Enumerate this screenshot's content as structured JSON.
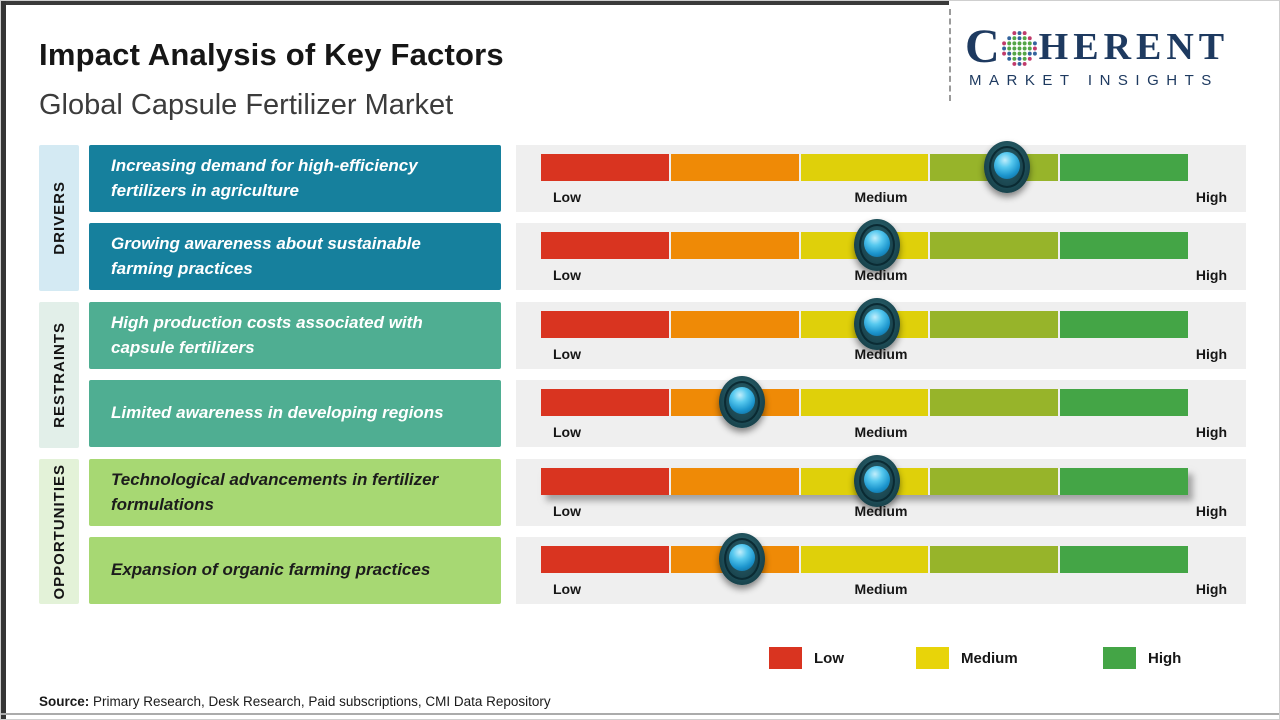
{
  "header": {
    "title": "Impact Analysis of Key Factors",
    "subtitle": "Global Capsule Fertilizer Market",
    "logo": {
      "brand_start": "C",
      "brand_end": "HERENT",
      "tagline": "MARKET INSIGHTS",
      "brand_color": "#1e3a60"
    }
  },
  "groups": [
    {
      "label": "DRIVERS",
      "factors": [
        {
          "text": "Increasing demand for high-efficiency fertilizers in agriculture",
          "impact_pct": 72
        },
        {
          "text": "Growing awareness about sustainable farming practices",
          "impact_pct": 52
        }
      ]
    },
    {
      "label": "RESTRAINTS",
      "factors": [
        {
          "text": "High production costs associated with capsule fertilizers",
          "impact_pct": 52
        },
        {
          "text": "Limited awareness in developing regions",
          "impact_pct": 31
        }
      ]
    },
    {
      "label": "OPPORTUNITIES",
      "factors": [
        {
          "text": "Technological advancements in fertilizer formulations",
          "impact_pct": 52
        },
        {
          "text": "Expansion of organic farming practices",
          "impact_pct": 31
        }
      ]
    }
  ],
  "scale": {
    "low": "Low",
    "medium": "Medium",
    "high": "High"
  },
  "bar_scale_colors": [
    "#d93420",
    "#ef8a06",
    "#dfd00a",
    "#97b42a",
    "#44a546"
  ],
  "legend": [
    {
      "label": "Low",
      "color": "#d93420"
    },
    {
      "label": "Medium",
      "color": "#e8d409"
    },
    {
      "label": "High",
      "color": "#44a546"
    }
  ],
  "source": {
    "label": "Source:",
    "text": " Primary Research, Desk Research, Paid subscriptions, CMI Data Repository"
  },
  "chart_data": {
    "type": "bar",
    "title": "Impact Analysis of Key Factors",
    "subtitle": "Global Capsule Fertilizer Market",
    "categories": [
      "Increasing demand for high-efficiency fertilizers in agriculture",
      "Growing awareness about sustainable farming practices",
      "High production costs associated with capsule fertilizers",
      "Limited awareness in developing regions",
      "Technological advancements in fertilizer formulations",
      "Expansion of organic farming practices"
    ],
    "category_groups": [
      "Drivers",
      "Drivers",
      "Restraints",
      "Restraints",
      "Opportunities",
      "Opportunities"
    ],
    "values": [
      72,
      52,
      52,
      31,
      52,
      31
    ],
    "value_scale": {
      "range": [
        0,
        100
      ],
      "tick_labels": [
        "Low",
        "Medium",
        "High"
      ],
      "tick_positions": [
        0,
        50,
        100
      ]
    },
    "legend_entries": [
      "Low",
      "Medium",
      "High"
    ],
    "legend_position": "bottom-right",
    "grid": false
  }
}
